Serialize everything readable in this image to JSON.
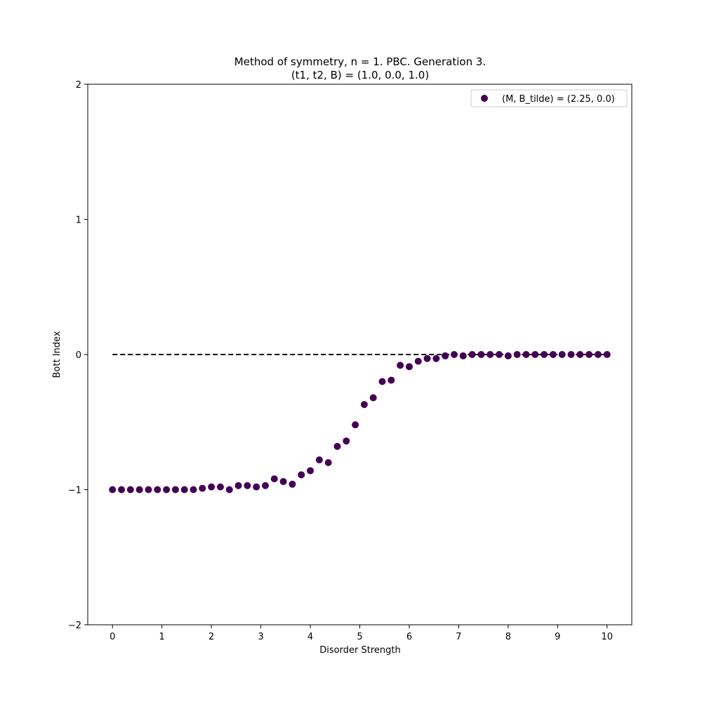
{
  "chart_data": {
    "type": "scatter",
    "title_line1": "Method of symmetry, n = 1. PBC. Generation 3.",
    "title_line2": "(t1, t2, B) = (1.0, 0.0, 1.0)",
    "xlabel": "Disorder Strength",
    "ylabel": "Bott Index",
    "xlim": [
      -0.5,
      10.5
    ],
    "ylim": [
      -2,
      2
    ],
    "xticks": [
      0,
      1,
      2,
      3,
      4,
      5,
      6,
      7,
      8,
      9,
      10
    ],
    "xtick_labels": [
      "0",
      "1",
      "2",
      "3",
      "4",
      "5",
      "6",
      "7",
      "8",
      "9",
      "10"
    ],
    "yticks": [
      -2,
      -1,
      0,
      1,
      2
    ],
    "ytick_labels": [
      "−2",
      "−1",
      "0",
      "1",
      "2"
    ],
    "grid": false,
    "legend_position": "top-right",
    "reference_line": {
      "y": 0,
      "x_start": 0,
      "x_end": 10,
      "style": "dashed",
      "color": "#000000"
    },
    "series": [
      {
        "name": "(M, B_tilde) = (2.25, 0.0)",
        "color": "#440154",
        "x": [
          0.0,
          0.1818,
          0.3636,
          0.5455,
          0.7273,
          0.9091,
          1.0909,
          1.2727,
          1.4545,
          1.6364,
          1.8182,
          2.0,
          2.1818,
          2.3636,
          2.5455,
          2.7273,
          2.9091,
          3.0909,
          3.2727,
          3.4545,
          3.6364,
          3.8182,
          4.0,
          4.1818,
          4.3636,
          4.5455,
          4.7273,
          4.9091,
          5.0909,
          5.2727,
          5.4545,
          5.6364,
          5.8182,
          6.0,
          6.1818,
          6.3636,
          6.5455,
          6.7273,
          6.9091,
          7.0909,
          7.2727,
          7.4545,
          7.6364,
          7.8182,
          8.0,
          8.1818,
          8.3636,
          8.5455,
          8.7273,
          8.9091,
          9.0909,
          9.2727,
          9.4545,
          9.6364,
          9.8182,
          10.0
        ],
        "y": [
          -1.0,
          -1.0,
          -1.0,
          -1.0,
          -1.0,
          -1.0,
          -1.0,
          -1.0,
          -1.0,
          -1.0,
          -0.99,
          -0.98,
          -0.98,
          -1.0,
          -0.97,
          -0.97,
          -0.98,
          -0.97,
          -0.92,
          -0.94,
          -0.96,
          -0.89,
          -0.86,
          -0.78,
          -0.8,
          -0.68,
          -0.64,
          -0.52,
          -0.37,
          -0.32,
          -0.2,
          -0.19,
          -0.08,
          -0.09,
          -0.05,
          -0.03,
          -0.03,
          -0.01,
          0.0,
          -0.01,
          0.0,
          0.0,
          0.0,
          0.0,
          -0.01,
          0.0,
          0.0,
          0.0,
          0.0,
          0.0,
          0.0,
          0.0,
          0.0,
          0.0,
          0.0,
          0.0
        ]
      }
    ]
  }
}
